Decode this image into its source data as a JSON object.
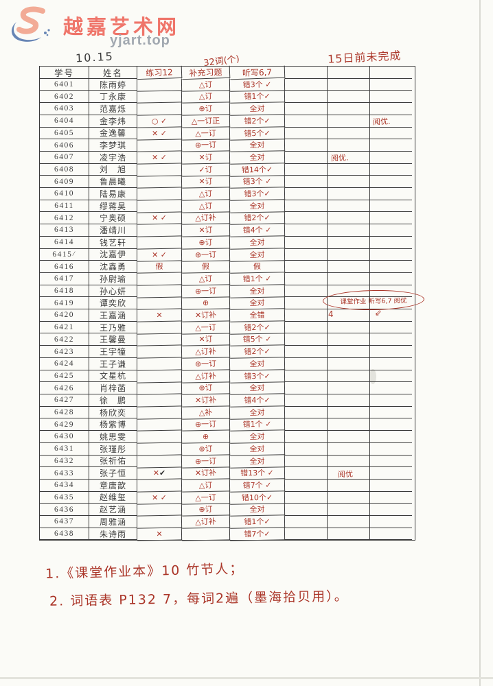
{
  "watermark": {
    "site_name": "越嘉艺术网",
    "domain": "yjart.top"
  },
  "colors": {
    "ink_red": "#ab3629",
    "ink_black": "#3b3b3b",
    "brand_red": "#ee6a5f",
    "brand_gray": "#9aa1ab"
  },
  "top_annotations": {
    "date": "10.15",
    "word_count": "32词(个)",
    "deadline": "15日前未完成"
  },
  "table": {
    "headers": {
      "id": "学号",
      "name": "姓名",
      "c3": "练习12",
      "c4": "补充习题",
      "c5": "听写6,7"
    },
    "rows": [
      {
        "id": "6401",
        "name": "陈雨婷",
        "c3": "",
        "c4": "△订",
        "c5": "错3个 ✓"
      },
      {
        "id": "6402",
        "name": "丁永康",
        "c3": "",
        "c4": "△订",
        "c5": "错1个✓"
      },
      {
        "id": "6403",
        "name": "范嘉烁",
        "c3": "",
        "c4": "⊕订",
        "c5": "全对"
      },
      {
        "id": "6404",
        "name": "金李炜",
        "c3": "○ ✓",
        "c4": "△一订正",
        "c5": "错2个✓"
      },
      {
        "id": "6405",
        "name": "金逸馨",
        "c3": "✕ ✓",
        "c4": "△一订",
        "c5": "错5个✓"
      },
      {
        "id": "6406",
        "name": "李梦琪",
        "c3": "",
        "c4": "⊕一订",
        "c5": "全对"
      },
      {
        "id": "6407",
        "name": "凌宇浩",
        "c3": "✕ ✓",
        "c4": "✕订",
        "c5": "全对"
      },
      {
        "id": "6408",
        "name": "刘　旭",
        "c3": "",
        "c4": "✓订",
        "c5": "错14个✓"
      },
      {
        "id": "6409",
        "name": "鲁晨曦",
        "c3": "",
        "c4": "✕订",
        "c5": "错3个 ✓"
      },
      {
        "id": "6410",
        "name": "陆易康",
        "c3": "",
        "c4": "△订",
        "c5": "错3个✓"
      },
      {
        "id": "6411",
        "name": "缪蒋昊",
        "c3": "",
        "c4": "△订",
        "c5": "全对"
      },
      {
        "id": "6412",
        "name": "宁奥硕",
        "c3": "✕ ✓",
        "c4": "△订补",
        "c5": "错2个✓"
      },
      {
        "id": "6413",
        "name": "潘靖川",
        "c3": "",
        "c4": "✕订",
        "c5": "错4个 ✓"
      },
      {
        "id": "6414",
        "name": "钱艺轩",
        "c3": "",
        "c4": "⊕订",
        "c5": "全对"
      },
      {
        "id": "6415",
        "id_suffix": "/",
        "name": "沈嘉伊",
        "c3": "✕ ✓",
        "c4": "⊕一订",
        "c5": "全对"
      },
      {
        "id": "6416",
        "name": "沈鑫勇",
        "c3": "假",
        "c4": "假",
        "c5": "假"
      },
      {
        "id": "6417",
        "name": "孙尉瑜",
        "c3": "",
        "c4": "△订",
        "c5": "错1个 ✓"
      },
      {
        "id": "6418",
        "name": "孙心妍",
        "c3": "",
        "c4": "⊕一订",
        "c5": "全对"
      },
      {
        "id": "6419",
        "name": "谭奕欣",
        "c3": "",
        "c4": "⊕",
        "c5": "全对"
      },
      {
        "id": "6420",
        "name": "王嘉涵",
        "c3": "✕",
        "c4": "✕订补",
        "c5": "全错"
      },
      {
        "id": "6421",
        "name": "王乃雅",
        "c3": "",
        "c4": "△一订",
        "c5": "错2个✓"
      },
      {
        "id": "6422",
        "name": "王馨曼",
        "c3": "",
        "c4": "✕订",
        "c5": "错5个 ✓"
      },
      {
        "id": "6423",
        "name": "王宇犝",
        "c3": "",
        "c4": "△订补",
        "c5": "错2个✓"
      },
      {
        "id": "6424",
        "name": "王子谦",
        "c3": "",
        "c4": "⊕一订",
        "c5": "全对"
      },
      {
        "id": "6425",
        "name": "文星杭",
        "c3": "",
        "c4": "△订补",
        "c5": "错3个✓"
      },
      {
        "id": "6426",
        "name": "肖梓菡",
        "c3": "",
        "c4": "⊕订",
        "c5": "全对"
      },
      {
        "id": "6427",
        "name": "徐　鹏",
        "c3": "",
        "c4": "✕订补",
        "c5": "错4个✓"
      },
      {
        "id": "6428",
        "name": "杨欣奕",
        "c3": "",
        "c4": "△补",
        "c5": "全对"
      },
      {
        "id": "6429",
        "name": "杨紫博",
        "c3": "",
        "c4": "⊕一订",
        "c5": "错1个 ✓"
      },
      {
        "id": "6430",
        "name": "姚思雯",
        "c3": "",
        "c4": "⊕",
        "c5": "全对"
      },
      {
        "id": "6431",
        "name": "张瑾彤",
        "c3": "",
        "c4": "⊕订",
        "c5": "全对"
      },
      {
        "id": "6432",
        "name": "张祈佑",
        "c3": "",
        "c4": "⊕一订",
        "c5": "全对"
      },
      {
        "id": "6433",
        "name": "张子恒",
        "c3": "✕ ✔",
        "c4": "✕订补",
        "c5": "错13个 ✓"
      },
      {
        "id": "6434",
        "name": "章唐歆",
        "c3": "",
        "c4": "△订",
        "c5": "错7个 ✓"
      },
      {
        "id": "6435",
        "name": "赵维玺",
        "c3": "✕ ✓",
        "c4": "△一订",
        "c5": "错10个✓"
      },
      {
        "id": "6436",
        "name": "赵艺涵",
        "c3": "",
        "c4": "⊕订",
        "c5": "全对"
      },
      {
        "id": "6437",
        "name": "周雅涵",
        "c3": "",
        "c4": "△订补",
        "c5": "错1个✓"
      },
      {
        "id": "6438",
        "name": "朱诗雨",
        "c3": "✕",
        "c4": "",
        "c5": "错7个✓"
      }
    ]
  },
  "row_notes": [
    {
      "row": "6404",
      "text": "阅优."
    },
    {
      "row": "6407",
      "text": "阅优."
    },
    {
      "row": "6419",
      "circled": true,
      "text": "课堂作业 听写6,7 阅优"
    },
    {
      "row": "6420",
      "marks": [
        "4",
        "⇙"
      ]
    },
    {
      "row": "6433",
      "text": "阅优"
    }
  ],
  "footer_notes": [
    "1.《课堂作业本》10 竹节人；",
    "2. 词语表 P132  7，每词2遍（墨海拾贝用）。"
  ]
}
